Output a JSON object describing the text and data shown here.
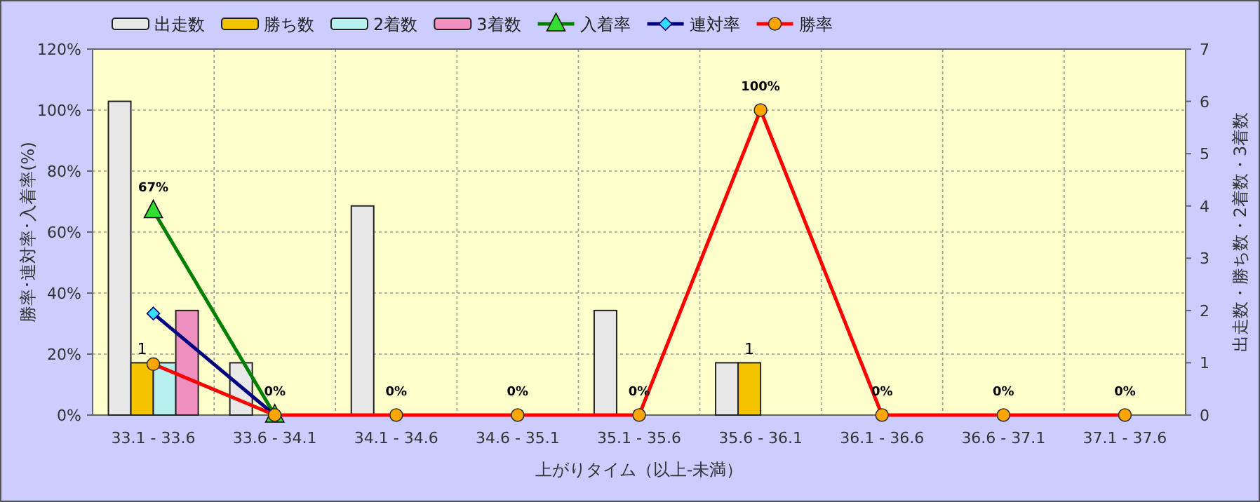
{
  "chart_data": {
    "type": "bar",
    "xlabel": "上がりタイム（以上-未満）",
    "ylabel": "勝率･連対率･入着率(%)",
    "y2label": "出走数・勝ち数・2着数・3着数",
    "categories": [
      "33.1 - 33.6",
      "33.6 - 34.1",
      "34.1 - 34.6",
      "34.6 - 35.1",
      "35.1 - 35.6",
      "35.6 - 36.1",
      "36.1 - 36.6",
      "36.6 - 37.1",
      "37.1 - 37.6"
    ],
    "series": [
      {
        "name": "出走数",
        "axis": "y2",
        "color": "#e8e8e8",
        "values": [
          6,
          1,
          4,
          0,
          2,
          1,
          0,
          0,
          0
        ]
      },
      {
        "name": "勝ち数",
        "axis": "y2",
        "color": "#f5c400",
        "values": [
          1,
          0,
          0,
          0,
          0,
          1,
          0,
          0,
          0
        ],
        "value_labels": [
          "1",
          null,
          null,
          null,
          null,
          "1",
          null,
          null,
          null
        ]
      },
      {
        "name": "2着数",
        "axis": "y2",
        "color": "#b8f0f0",
        "values": [
          1,
          0,
          0,
          0,
          0,
          0,
          0,
          0,
          0
        ]
      },
      {
        "name": "3着数",
        "axis": "y2",
        "color": "#f090c0",
        "values": [
          2,
          0,
          0,
          0,
          0,
          0,
          0,
          0,
          0
        ]
      },
      {
        "name": "入着率",
        "type": "line",
        "marker": "triangle",
        "color": "#008000",
        "values": [
          67,
          0,
          null,
          null,
          null,
          null,
          null,
          null,
          null
        ],
        "value_labels": [
          "67%",
          null,
          null,
          null,
          null,
          null,
          null,
          null,
          null
        ]
      },
      {
        "name": "連対率",
        "type": "line",
        "marker": "diamond",
        "color": "#000080",
        "values": [
          33.3,
          0,
          null,
          null,
          null,
          null,
          null,
          null,
          null
        ]
      },
      {
        "name": "勝率",
        "type": "line",
        "marker": "circle",
        "color": "#ff0000",
        "values": [
          16.7,
          0,
          0,
          0,
          0,
          100,
          0,
          0,
          0
        ],
        "value_labels": [
          null,
          "0%",
          "0%",
          "0%",
          "0%",
          "100%",
          "0%",
          "0%",
          "0%"
        ]
      }
    ],
    "ylim": [
      0,
      120
    ],
    "yticks": [
      {
        "value": 0,
        "label": "0%"
      },
      {
        "value": 20,
        "label": "20%"
      },
      {
        "value": 40,
        "label": "40%"
      },
      {
        "value": 60,
        "label": "60%"
      },
      {
        "value": 80,
        "label": "80%"
      },
      {
        "value": 100,
        "label": "100%"
      },
      {
        "value": 120,
        "label": "120%"
      }
    ],
    "y2lim": [
      0,
      7
    ],
    "y2ticks": [
      0,
      1,
      2,
      3,
      4,
      5,
      6,
      7
    ],
    "grid": true,
    "legend": "top"
  }
}
